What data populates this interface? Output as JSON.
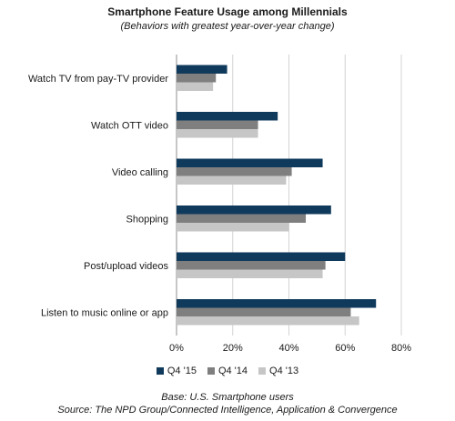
{
  "header": {
    "title": "Smartphone Feature Usage among Millennials",
    "subtitle": "(Behaviors with greatest year-over-year change)"
  },
  "chart_data": {
    "type": "bar",
    "orientation": "horizontal",
    "title": "Smartphone Feature Usage among Millennials",
    "subtitle": "(Behaviors with greatest year-over-year change)",
    "categories": [
      "Watch TV from pay-TV provider",
      "Watch OTT video",
      "Video calling",
      "Shopping",
      "Post/upload videos",
      "Listen to music online or app"
    ],
    "series": [
      {
        "name": "Q4 '15",
        "color": "#0f3a5c",
        "values": [
          18,
          36,
          52,
          55,
          60,
          71
        ]
      },
      {
        "name": "Q4 '14",
        "color": "#7f7f7f",
        "values": [
          14,
          29,
          41,
          46,
          53,
          62
        ]
      },
      {
        "name": "Q4 '13",
        "color": "#c6c6c6",
        "values": [
          13,
          29,
          39,
          40,
          52,
          65
        ]
      }
    ],
    "xlim": [
      0,
      80
    ],
    "xticks": [
      0,
      20,
      40,
      60,
      80
    ],
    "tick_suffix": "%",
    "grid": true,
    "legend_position": "bottom"
  },
  "footer": {
    "base": "Base: U.S. Smartphone users",
    "source": "Source: The NPD Group/Connected Intelligence, Application & Convergence"
  }
}
